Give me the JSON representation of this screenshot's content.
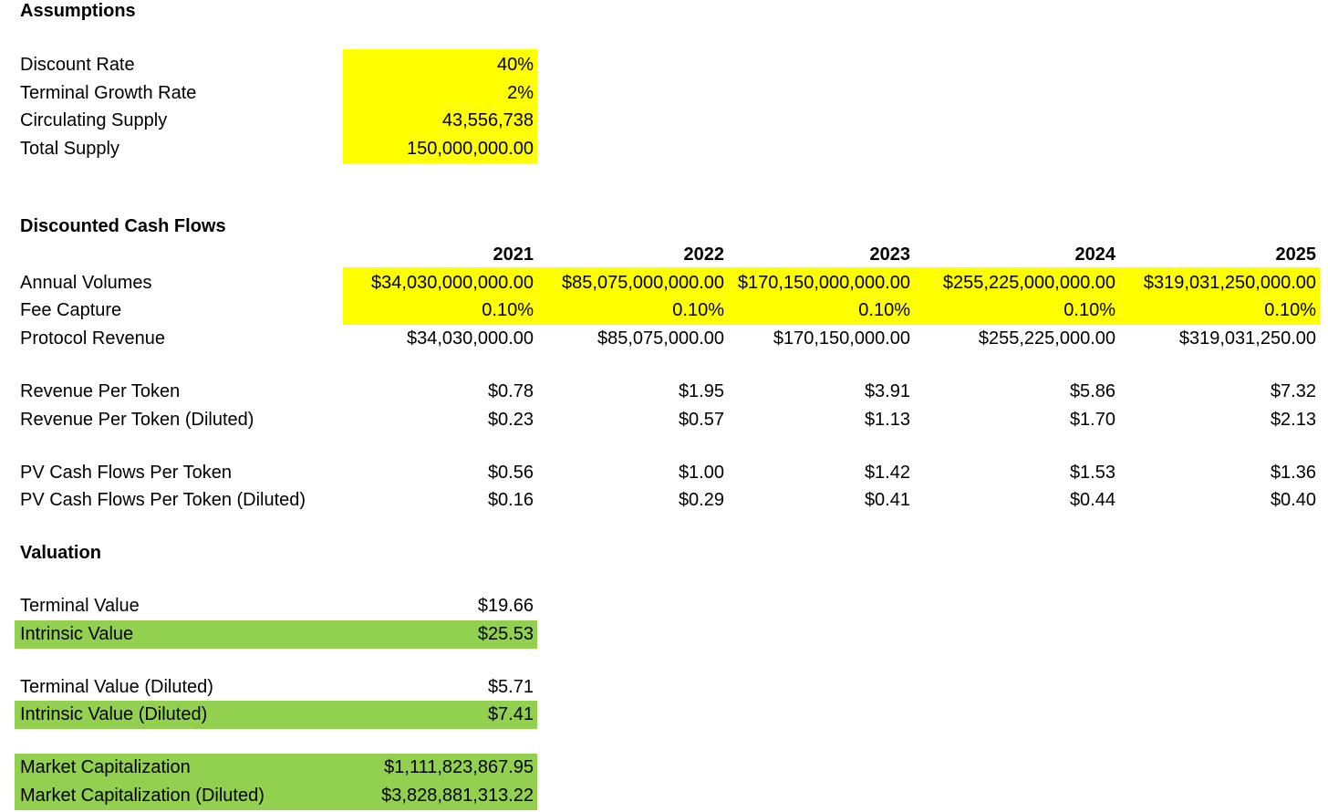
{
  "assumptions": {
    "title": "Assumptions",
    "rows": [
      {
        "label": "Discount Rate",
        "value": "40%"
      },
      {
        "label": "Terminal Growth Rate",
        "value": "2%"
      },
      {
        "label": "Circulating Supply",
        "value": "43,556,738"
      },
      {
        "label": "Total Supply",
        "value": "150,000,000.00"
      }
    ]
  },
  "dcf": {
    "title": "Discounted Cash Flows",
    "years": [
      "2021",
      "2022",
      "2023",
      "2024",
      "2025"
    ],
    "annual_volumes": {
      "label": "Annual Volumes",
      "values": [
        "$34,030,000,000.00",
        "$85,075,000,000.00",
        "$170,150,000,000.00",
        "$255,225,000,000.00",
        "$319,031,250,000.00"
      ]
    },
    "fee_capture": {
      "label": "Fee Capture",
      "values": [
        "0.10%",
        "0.10%",
        "0.10%",
        "0.10%",
        "0.10%"
      ]
    },
    "protocol_revenue": {
      "label": "Protocol Revenue",
      "values": [
        "$34,030,000.00",
        "$85,075,000.00",
        "$170,150,000.00",
        "$255,225,000.00",
        "$319,031,250.00"
      ]
    },
    "revenue_per_token": {
      "label": "Revenue Per Token",
      "values": [
        "$0.78",
        "$1.95",
        "$3.91",
        "$5.86",
        "$7.32"
      ]
    },
    "revenue_per_token_diluted": {
      "label": "Revenue Per Token (Diluted)",
      "values": [
        "$0.23",
        "$0.57",
        "$1.13",
        "$1.70",
        "$2.13"
      ]
    },
    "pv_per_token": {
      "label": "PV Cash Flows Per Token",
      "values": [
        "$0.56",
        "$1.00",
        "$1.42",
        "$1.53",
        "$1.36"
      ]
    },
    "pv_per_token_diluted": {
      "label": "PV Cash Flows Per Token (Diluted)",
      "values": [
        "$0.16",
        "$0.29",
        "$0.41",
        "$0.44",
        "$0.40"
      ]
    }
  },
  "valuation": {
    "title": "Valuation",
    "terminal_value": {
      "label": "Terminal Value",
      "value": "$19.66"
    },
    "intrinsic_value": {
      "label": "Intrinsic Value",
      "value": "$25.53"
    },
    "terminal_value_diluted": {
      "label": "Terminal Value (Diluted)",
      "value": "$5.71"
    },
    "intrinsic_value_diluted": {
      "label": "Intrinsic Value (Diluted)",
      "value": "$7.41"
    },
    "market_cap": {
      "label": "Market Capitalization",
      "value": "$1,111,823,867.95"
    },
    "market_cap_diluted": {
      "label": "Market Capitalization (Diluted)",
      "value": "$3,828,881,313.22"
    }
  },
  "colors": {
    "input_highlight": "#ffff00",
    "result_highlight": "#92d050"
  }
}
